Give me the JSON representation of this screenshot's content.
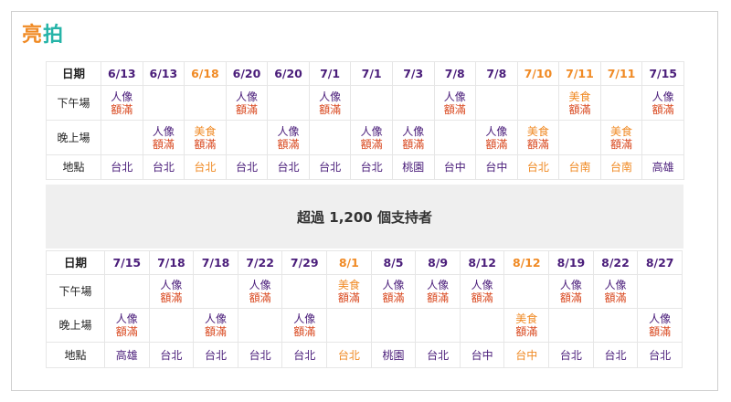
{
  "logo": {
    "part1": "亮",
    "part2": "拍"
  },
  "banner": "超過 1,200 個支持者",
  "labels": {
    "date": "日期",
    "afternoon": "下午場",
    "evening": "晚上場",
    "location": "地點"
  },
  "colors": {
    "purple": "#4a1d7a",
    "orange": "#f08a24",
    "full_red": "#d9481f",
    "logo_teal": "#26b4a8"
  },
  "top": {
    "dates": [
      {
        "d": "6/13",
        "t": "p"
      },
      {
        "d": "6/13",
        "t": "p"
      },
      {
        "d": "6/18",
        "t": "o"
      },
      {
        "d": "6/20",
        "t": "p"
      },
      {
        "d": "6/20",
        "t": "p"
      },
      {
        "d": "7/1",
        "t": "p"
      },
      {
        "d": "7/1",
        "t": "p"
      },
      {
        "d": "7/3",
        "t": "p"
      },
      {
        "d": "7/8",
        "t": "p"
      },
      {
        "d": "7/8",
        "t": "p"
      },
      {
        "d": "7/10",
        "t": "o"
      },
      {
        "d": "7/11",
        "t": "o"
      },
      {
        "d": "7/11",
        "t": "o"
      },
      {
        "d": "7/15",
        "t": "p"
      }
    ],
    "afternoon": [
      {
        "a": "人像",
        "b": "額滿",
        "t": "p"
      },
      {
        "a": "",
        "b": "",
        "t": "p"
      },
      {
        "a": "",
        "b": "",
        "t": "p"
      },
      {
        "a": "人像",
        "b": "額滿",
        "t": "p"
      },
      {
        "a": "",
        "b": "",
        "t": "p"
      },
      {
        "a": "人像",
        "b": "額滿",
        "t": "p"
      },
      {
        "a": "",
        "b": "",
        "t": "p"
      },
      {
        "a": "",
        "b": "",
        "t": "p"
      },
      {
        "a": "人像",
        "b": "額滿",
        "t": "p"
      },
      {
        "a": "",
        "b": "",
        "t": "p"
      },
      {
        "a": "",
        "b": "",
        "t": "p"
      },
      {
        "a": "美食",
        "b": "額滿",
        "t": "o"
      },
      {
        "a": "",
        "b": "",
        "t": "p"
      },
      {
        "a": "人像",
        "b": "額滿",
        "t": "p"
      }
    ],
    "evening": [
      {
        "a": "",
        "b": "",
        "t": "p"
      },
      {
        "a": "人像",
        "b": "額滿",
        "t": "p"
      },
      {
        "a": "美食",
        "b": "額滿",
        "t": "o"
      },
      {
        "a": "",
        "b": "",
        "t": "p"
      },
      {
        "a": "人像",
        "b": "額滿",
        "t": "p"
      },
      {
        "a": "",
        "b": "",
        "t": "p"
      },
      {
        "a": "人像",
        "b": "額滿",
        "t": "p"
      },
      {
        "a": "人像",
        "b": "額滿",
        "t": "p"
      },
      {
        "a": "",
        "b": "",
        "t": "p"
      },
      {
        "a": "人像",
        "b": "額滿",
        "t": "p"
      },
      {
        "a": "美食",
        "b": "額滿",
        "t": "o"
      },
      {
        "a": "",
        "b": "",
        "t": "p"
      },
      {
        "a": "美食",
        "b": "額滿",
        "t": "o"
      },
      {
        "a": "",
        "b": "",
        "t": "p"
      }
    ],
    "locations": [
      {
        "d": "台北",
        "t": "p"
      },
      {
        "d": "台北",
        "t": "p"
      },
      {
        "d": "台北",
        "t": "o"
      },
      {
        "d": "台北",
        "t": "p"
      },
      {
        "d": "台北",
        "t": "p"
      },
      {
        "d": "台北",
        "t": "p"
      },
      {
        "d": "台北",
        "t": "p"
      },
      {
        "d": "桃園",
        "t": "p"
      },
      {
        "d": "台中",
        "t": "p"
      },
      {
        "d": "台中",
        "t": "p"
      },
      {
        "d": "台北",
        "t": "o"
      },
      {
        "d": "台南",
        "t": "o"
      },
      {
        "d": "台南",
        "t": "o"
      },
      {
        "d": "高雄",
        "t": "p"
      }
    ]
  },
  "bottom": {
    "dates": [
      {
        "d": "7/15",
        "t": "p"
      },
      {
        "d": "7/18",
        "t": "p"
      },
      {
        "d": "7/18",
        "t": "p"
      },
      {
        "d": "7/22",
        "t": "p"
      },
      {
        "d": "7/29",
        "t": "p"
      },
      {
        "d": "8/1",
        "t": "o"
      },
      {
        "d": "8/5",
        "t": "p"
      },
      {
        "d": "8/9",
        "t": "p"
      },
      {
        "d": "8/12",
        "t": "p"
      },
      {
        "d": "8/12",
        "t": "o"
      },
      {
        "d": "8/19",
        "t": "p"
      },
      {
        "d": "8/22",
        "t": "p"
      },
      {
        "d": "8/27",
        "t": "p"
      }
    ],
    "afternoon": [
      {
        "a": "",
        "b": "",
        "t": "p"
      },
      {
        "a": "人像",
        "b": "額滿",
        "t": "p"
      },
      {
        "a": "",
        "b": "",
        "t": "p"
      },
      {
        "a": "人像",
        "b": "額滿",
        "t": "p"
      },
      {
        "a": "",
        "b": "",
        "t": "p"
      },
      {
        "a": "美食",
        "b": "額滿",
        "t": "o"
      },
      {
        "a": "人像",
        "b": "額滿",
        "t": "p"
      },
      {
        "a": "人像",
        "b": "額滿",
        "t": "p"
      },
      {
        "a": "人像",
        "b": "額滿",
        "t": "p"
      },
      {
        "a": "",
        "b": "",
        "t": "p"
      },
      {
        "a": "人像",
        "b": "額滿",
        "t": "p"
      },
      {
        "a": "人像",
        "b": "額滿",
        "t": "p"
      },
      {
        "a": "",
        "b": "",
        "t": "p"
      }
    ],
    "evening": [
      {
        "a": "人像",
        "b": "額滿",
        "t": "p"
      },
      {
        "a": "",
        "b": "",
        "t": "p"
      },
      {
        "a": "人像",
        "b": "額滿",
        "t": "p"
      },
      {
        "a": "",
        "b": "",
        "t": "p"
      },
      {
        "a": "人像",
        "b": "額滿",
        "t": "p"
      },
      {
        "a": "",
        "b": "",
        "t": "p"
      },
      {
        "a": "",
        "b": "",
        "t": "p"
      },
      {
        "a": "",
        "b": "",
        "t": "p"
      },
      {
        "a": "",
        "b": "",
        "t": "p"
      },
      {
        "a": "美食",
        "b": "額滿",
        "t": "o"
      },
      {
        "a": "",
        "b": "",
        "t": "p"
      },
      {
        "a": "",
        "b": "",
        "t": "p"
      },
      {
        "a": "人像",
        "b": "額滿",
        "t": "p"
      }
    ],
    "locations": [
      {
        "d": "高雄",
        "t": "p"
      },
      {
        "d": "台北",
        "t": "p"
      },
      {
        "d": "台北",
        "t": "p"
      },
      {
        "d": "台北",
        "t": "p"
      },
      {
        "d": "台北",
        "t": "p"
      },
      {
        "d": "台北",
        "t": "o"
      },
      {
        "d": "桃園",
        "t": "p"
      },
      {
        "d": "台北",
        "t": "p"
      },
      {
        "d": "台中",
        "t": "p"
      },
      {
        "d": "台中",
        "t": "o"
      },
      {
        "d": "台北",
        "t": "p"
      },
      {
        "d": "台北",
        "t": "p"
      },
      {
        "d": "台北",
        "t": "p"
      }
    ]
  }
}
